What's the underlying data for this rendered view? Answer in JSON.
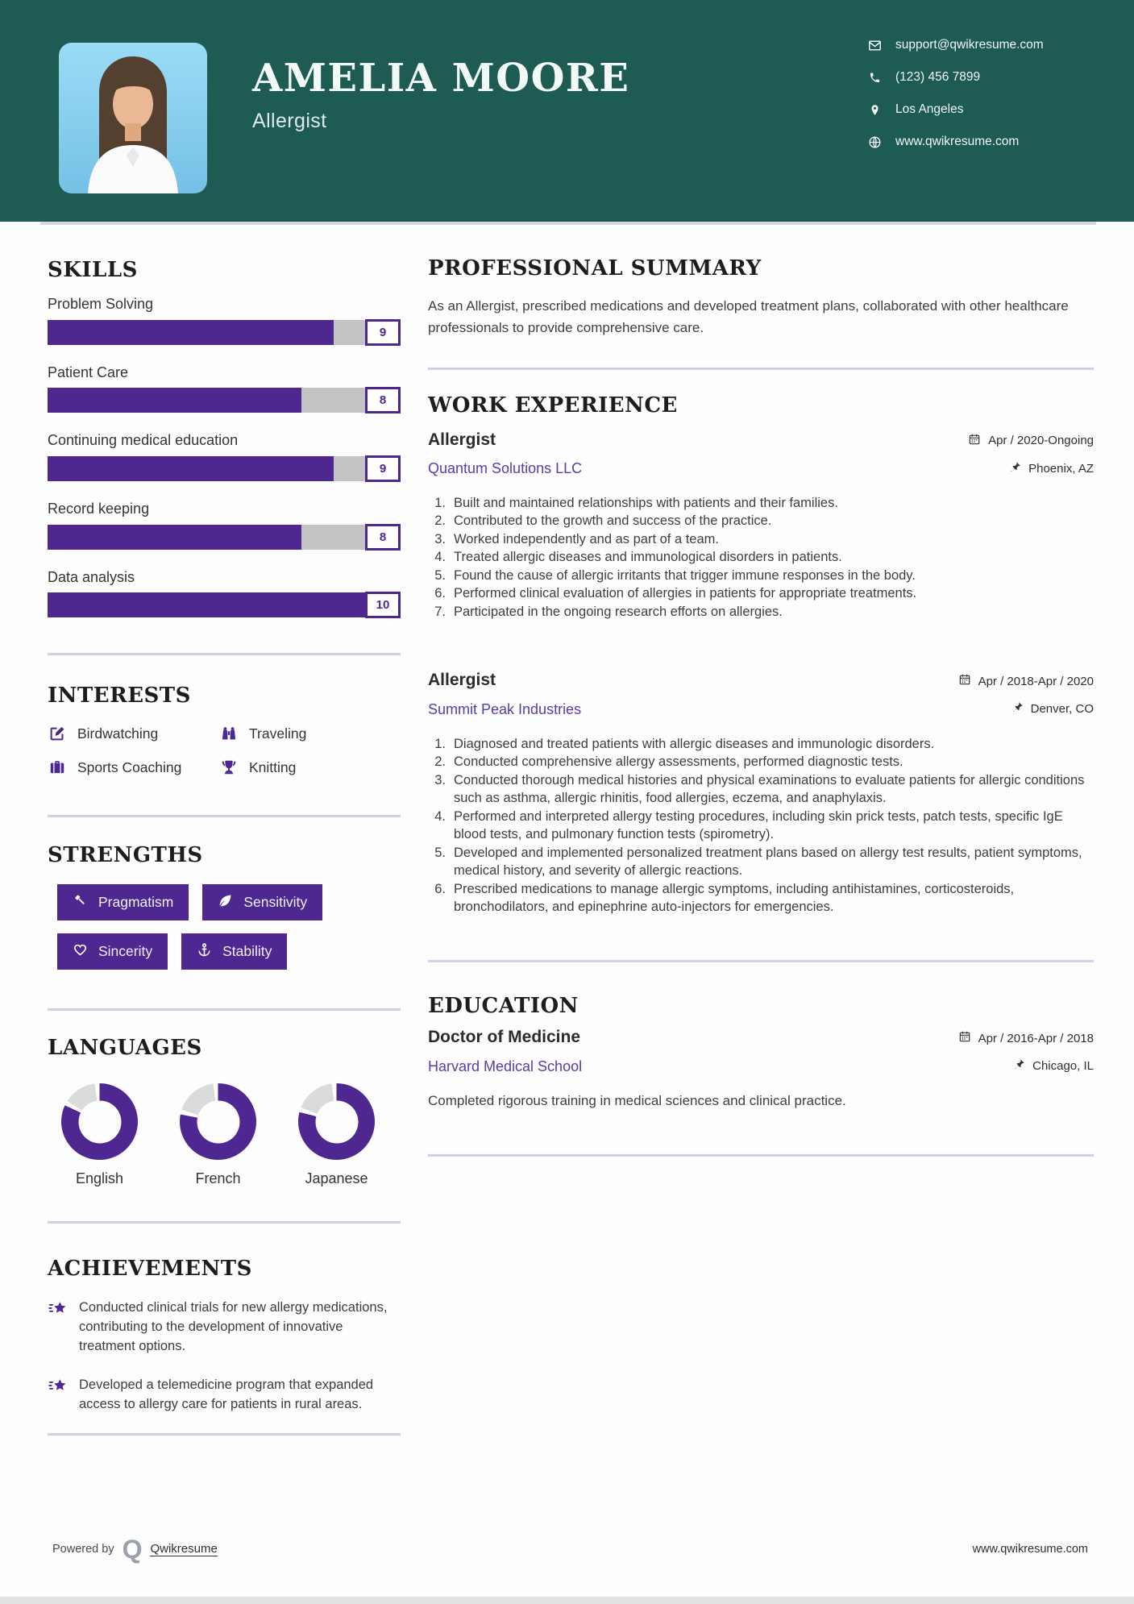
{
  "theme": {
    "header_teal": "#1E5B53",
    "accent_purple": "#4E2790",
    "link_purple": "#5b3ba8",
    "track_gray": "#c3c3c3",
    "donut_gray": "#dbdbdb",
    "photo_bg_blue": "#8FD0F0"
  },
  "header": {
    "name": "AMELIA MOORE",
    "title": "Allergist",
    "contacts": [
      {
        "icon": "email-icon",
        "text": "support@qwikresume.com"
      },
      {
        "icon": "phone-icon",
        "text": "(123) 456 7899"
      },
      {
        "icon": "location-icon",
        "text": "Los Angeles"
      },
      {
        "icon": "globe-icon",
        "text": "www.qwikresume.com"
      }
    ]
  },
  "skills": {
    "heading": "SKILLS",
    "max_value": 10,
    "items": [
      {
        "label": "Problem Solving",
        "value": 9
      },
      {
        "label": "Patient Care",
        "value": 8
      },
      {
        "label": "Continuing medical education",
        "value": 9
      },
      {
        "label": "Record keeping",
        "value": 8
      },
      {
        "label": "Data analysis",
        "value": 10
      }
    ]
  },
  "interests": {
    "heading": "INTERESTS",
    "items": [
      {
        "icon": "edit-icon",
        "label": "Birdwatching"
      },
      {
        "icon": "binoculars-icon",
        "label": "Traveling"
      },
      {
        "icon": "briefcase-icon",
        "label": "Sports Coaching"
      },
      {
        "icon": "trophy-icon",
        "label": "Knitting"
      }
    ]
  },
  "strengths": {
    "heading": "STRENGTHS",
    "items": [
      {
        "icon": "gavel-icon",
        "label": "Pragmatism"
      },
      {
        "icon": "leaf-icon",
        "label": "Sensitivity"
      },
      {
        "icon": "heart-icon",
        "label": "Sincerity"
      },
      {
        "icon": "anchor-icon",
        "label": "Stability"
      }
    ]
  },
  "languages": {
    "heading": "LANGUAGES",
    "items": [
      {
        "label": "English",
        "percent": 82
      },
      {
        "label": "French",
        "percent": 78
      },
      {
        "label": "Japanese",
        "percent": 79
      }
    ]
  },
  "achievements": {
    "heading": "ACHIEVEMENTS",
    "items": [
      {
        "text": "Conducted clinical trials for new allergy medications, contributing to the development of innovative treatment options."
      },
      {
        "text": "Developed a telemedicine program that expanded access to allergy care for patients in rural areas."
      }
    ]
  },
  "summary": {
    "heading": "PROFESSIONAL SUMMARY",
    "text": "As an Allergist, prescribed medications and developed treatment plans, collaborated with other healthcare professionals to provide comprehensive care."
  },
  "work": {
    "heading": "WORK EXPERIENCE",
    "jobs": [
      {
        "position": "Allergist",
        "company": "Quantum Solutions LLC",
        "dates": "Apr / 2020-Ongoing",
        "location": "Phoenix, AZ",
        "bullets": [
          "Built and maintained relationships with patients and their families.",
          "Contributed to the growth and success of the practice.",
          "Worked independently and as part of a team.",
          "Treated allergic diseases and immunological disorders in patients.",
          "Found the cause of allergic irritants that trigger immune responses in the body.",
          "Performed clinical evaluation of allergies in patients for appropriate treatments.",
          "Participated in the ongoing research efforts on allergies."
        ]
      },
      {
        "position": "Allergist",
        "company": "Summit Peak Industries",
        "dates": "Apr / 2018-Apr / 2020",
        "location": "Denver, CO",
        "bullets": [
          "Diagnosed and treated patients with allergic diseases and immunologic disorders.",
          "Conducted comprehensive allergy assessments, performed diagnostic tests.",
          "Conducted thorough medical histories and physical examinations to evaluate patients for allergic conditions such as asthma, allergic rhinitis, food allergies, eczema, and anaphylaxis.",
          "Performed and interpreted allergy testing procedures, including skin prick tests, patch tests, specific IgE blood tests, and pulmonary function tests (spirometry).",
          "Developed and implemented personalized treatment plans based on allergy test results, patient symptoms, medical history, and severity of allergic reactions.",
          "Prescribed medications to manage allergic symptoms, including antihistamines, corticosteroids, bronchodilators, and epinephrine auto-injectors for emergencies."
        ]
      }
    ]
  },
  "education": {
    "heading": "EDUCATION",
    "degree": "Doctor of Medicine",
    "school": "Harvard Medical School",
    "dates": "Apr / 2016-Apr / 2018",
    "location": "Chicago, IL",
    "description": "Completed rigorous training in medical sciences and clinical practice."
  },
  "footer": {
    "powered_by": "Powered by",
    "brand": "Qwikresume",
    "site": "www.qwikresume.com"
  }
}
